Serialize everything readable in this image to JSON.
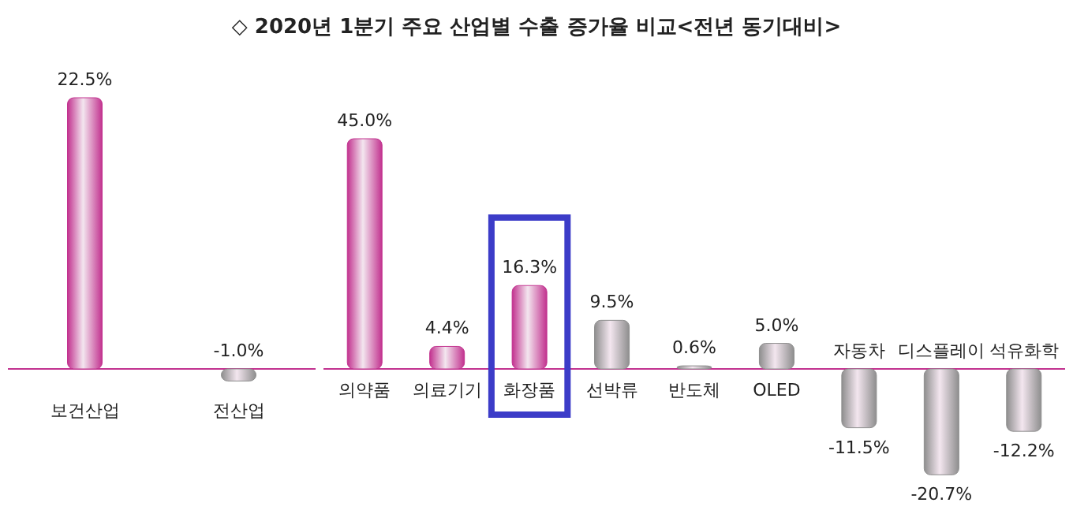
{
  "chart_data": [
    {
      "type": "bar",
      "title": "◇ 2020년 1분기 주요 산업별 수출 증가율 비교<전년 동기대비>",
      "categories": [
        "보건산업",
        "전산업"
      ],
      "values": [
        22.5,
        -1.0
      ],
      "colors": [
        "#c2328f",
        "#8e8e8e"
      ],
      "data_labels": true,
      "value_labels": [
        "22.5%",
        "-1.0%"
      ]
    },
    {
      "type": "bar",
      "categories": [
        "의약품",
        "의료기기",
        "화장품",
        "선박류",
        "반도체",
        "OLED",
        "자동차",
        "디스플레이",
        "석유화학"
      ],
      "values": [
        45.0,
        4.4,
        16.3,
        9.5,
        0.6,
        5.0,
        -11.5,
        -20.7,
        -12.2
      ],
      "colors": [
        "#c2328f",
        "#c2328f",
        "#c2328f",
        "#8e8e8e",
        "#8e8e8e",
        "#8e8e8e",
        "#8e8e8e",
        "#8e8e8e",
        "#8e8e8e"
      ],
      "data_labels": true,
      "value_labels": [
        "45.0%",
        "4.4%",
        "16.3%",
        "9.5%",
        "0.6%",
        "5.0%",
        "-11.5%",
        "-20.7%",
        "-12.2%"
      ]
    }
  ]
}
